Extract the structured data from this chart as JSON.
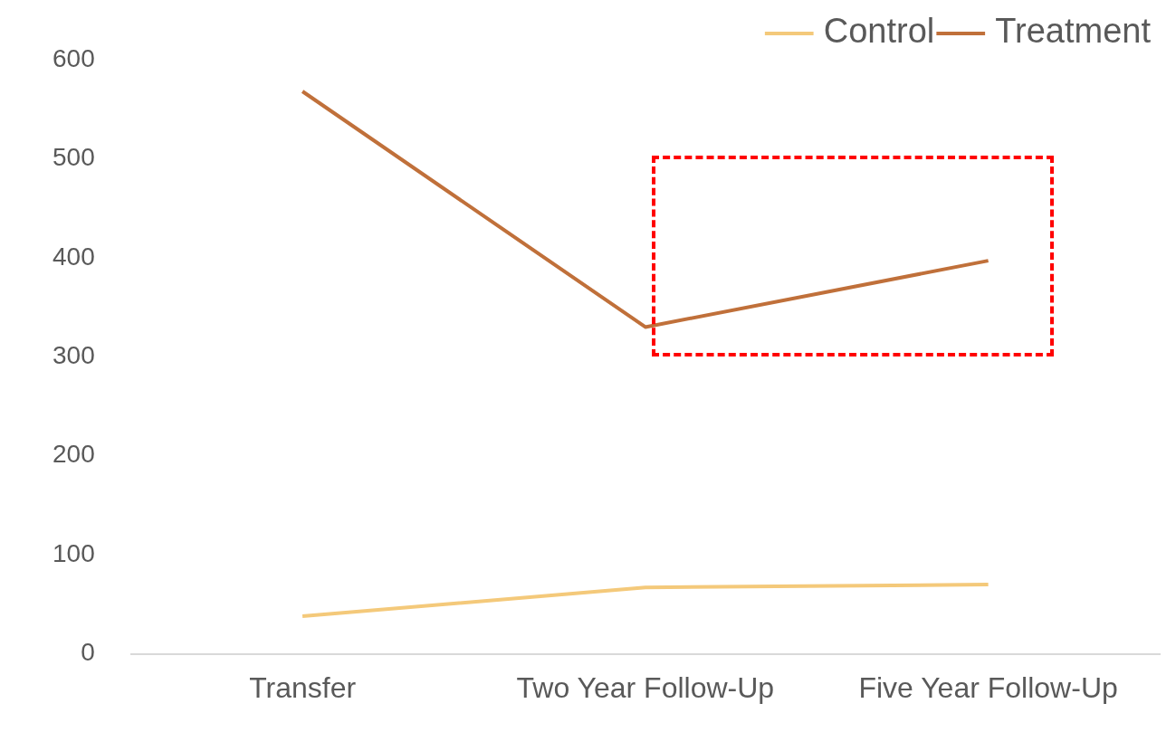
{
  "chart_data": {
    "type": "line",
    "categories": [
      "Transfer",
      "Two Year Follow-Up",
      "Five Year Follow-Up"
    ],
    "series": [
      {
        "name": "Control",
        "color": "#f4c97a",
        "values": [
          38,
          67,
          70
        ]
      },
      {
        "name": "Treatment",
        "color": "#c0703a",
        "values": [
          568,
          330,
          397
        ]
      }
    ],
    "ylim": [
      0,
      600
    ],
    "yticks": [
      0,
      100,
      200,
      300,
      400,
      500,
      600
    ],
    "grid": false,
    "legend": "top right",
    "marker": "none",
    "line_style": "solid"
  }
}
